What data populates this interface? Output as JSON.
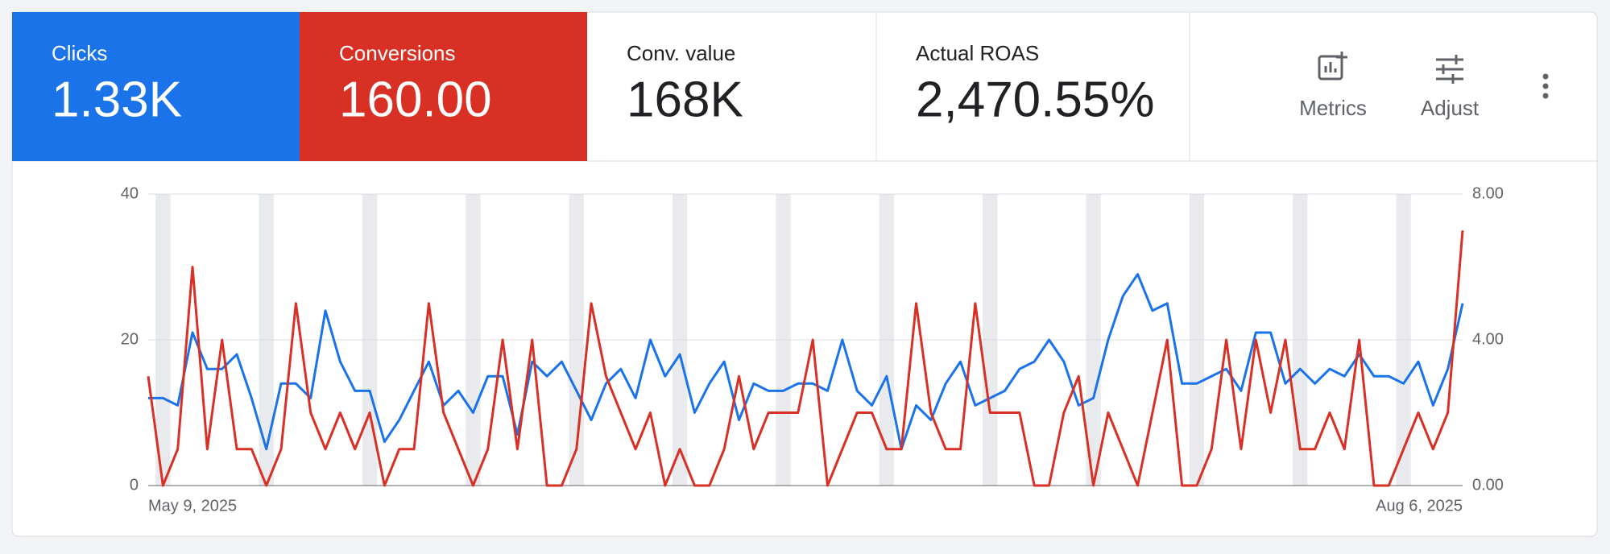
{
  "chart_data": {
    "type": "line",
    "categories": [
      "May 9, 2025",
      null,
      null,
      null,
      null,
      null,
      null,
      null,
      null,
      null,
      null,
      null,
      null,
      null,
      null,
      null,
      null,
      null,
      null,
      null,
      null,
      null,
      null,
      null,
      null,
      null,
      null,
      null,
      null,
      null,
      null,
      null,
      null,
      null,
      null,
      null,
      null,
      null,
      null,
      null,
      null,
      null,
      null,
      null,
      null,
      null,
      null,
      null,
      null,
      null,
      null,
      null,
      null,
      null,
      null,
      null,
      null,
      null,
      null,
      null,
      null,
      null,
      null,
      null,
      null,
      null,
      null,
      null,
      null,
      null,
      null,
      null,
      null,
      null,
      null,
      null,
      null,
      null,
      null,
      null,
      null,
      null,
      null,
      null,
      null,
      null,
      null,
      null,
      null,
      "Aug 6, 2025"
    ],
    "series": [
      {
        "name": "Clicks",
        "summary": "1.33K",
        "color": "#1a73e8",
        "axis": "y",
        "values": [
          12,
          12,
          11,
          21,
          16,
          16,
          18,
          12,
          5,
          14,
          14,
          12,
          24,
          17,
          13,
          13,
          6,
          9,
          13,
          17,
          11,
          13,
          10,
          15,
          15,
          7,
          17,
          15,
          17,
          13,
          9,
          14,
          16,
          12,
          20,
          15,
          18,
          10,
          14,
          17,
          9,
          14,
          13,
          13,
          14,
          14,
          13,
          20,
          13,
          11,
          15,
          5,
          11,
          9,
          14,
          17,
          11,
          12,
          13,
          16,
          17,
          20,
          17,
          11,
          12,
          20,
          26,
          29,
          24,
          25,
          14,
          14,
          15,
          16,
          13,
          21,
          21,
          14,
          16,
          14,
          16,
          15,
          18,
          15,
          15,
          14,
          17,
          11,
          16,
          25
        ]
      },
      {
        "name": "Conversions",
        "summary": "160.00",
        "color": "#d93025",
        "axis": "y2",
        "values": [
          3,
          0,
          1,
          6,
          1,
          4,
          1,
          1,
          0,
          1,
          5,
          2,
          1,
          2,
          1,
          2,
          0,
          1,
          1,
          5,
          2,
          1,
          0,
          1,
          4,
          1,
          4,
          0,
          0,
          1,
          5,
          3,
          2,
          1,
          2,
          0,
          1,
          0,
          0,
          1,
          3,
          1,
          2,
          2,
          2,
          4,
          0,
          1,
          2,
          2,
          1,
          1,
          5,
          2,
          1,
          1,
          5,
          2,
          2,
          2,
          0,
          0,
          2,
          3,
          0,
          2,
          1,
          0,
          2,
          4,
          0,
          0,
          1,
          4,
          1,
          4,
          2,
          4,
          1,
          1,
          2,
          1,
          4,
          0,
          0,
          1,
          2,
          1,
          2,
          7
        ]
      }
    ],
    "ylim": [
      0,
      40
    ],
    "yticks": [
      0,
      20,
      40
    ],
    "y2lim": [
      0,
      8
    ],
    "y2ticks": [
      {
        "value": 0,
        "label": "0.00"
      },
      {
        "value": 4,
        "label": "4.00"
      },
      {
        "value": 8,
        "label": "8.00"
      }
    ],
    "grid": true
  },
  "scorecards": [
    {
      "label": "Conv. value",
      "value": "168K"
    },
    {
      "label": "Actual ROAS",
      "value": "2,470.55%"
    }
  ],
  "toolbar": [
    "Metrics",
    "Adjust"
  ]
}
